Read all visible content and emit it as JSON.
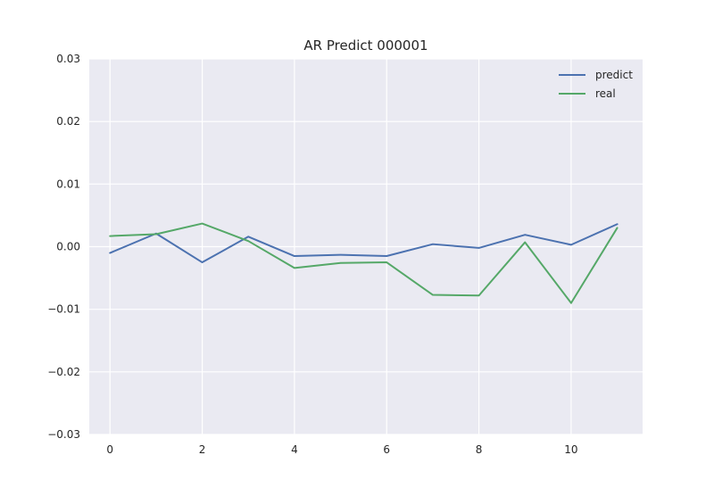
{
  "chart_data": {
    "type": "line",
    "title": "AR Predict 000001",
    "xlabel": "",
    "ylabel": "",
    "x": [
      0,
      1,
      2,
      3,
      4,
      5,
      6,
      7,
      8,
      9,
      10,
      11
    ],
    "xlim": [
      -0.45,
      11.55
    ],
    "ylim": [
      -0.03,
      0.03
    ],
    "xticks": [
      0,
      2,
      4,
      6,
      8,
      10
    ],
    "yticks": [
      -0.03,
      -0.02,
      -0.01,
      0.0,
      0.01,
      0.02,
      0.03
    ],
    "xtick_labels": [
      "0",
      "2",
      "4",
      "6",
      "8",
      "10"
    ],
    "ytick_labels": [
      "−0.03",
      "−0.02",
      "−0.01",
      "0.00",
      "0.01",
      "0.02",
      "0.03"
    ],
    "grid": true,
    "legend_position": "top-right",
    "series": [
      {
        "name": "predict",
        "color": "#4c72b0",
        "values": [
          -0.001,
          0.0021,
          -0.0025,
          0.0016,
          -0.0015,
          -0.0013,
          -0.0015,
          0.0004,
          -0.0002,
          0.0019,
          0.0003,
          0.0036
        ]
      },
      {
        "name": "real",
        "color": "#55a868",
        "values": [
          0.0017,
          0.002,
          0.0037,
          0.0009,
          -0.0034,
          -0.0026,
          -0.0025,
          -0.0077,
          -0.0078,
          0.0007,
          -0.009,
          0.003
        ]
      }
    ],
    "style": {
      "background": "#eaeaf2",
      "grid_color": "#ffffff"
    }
  }
}
